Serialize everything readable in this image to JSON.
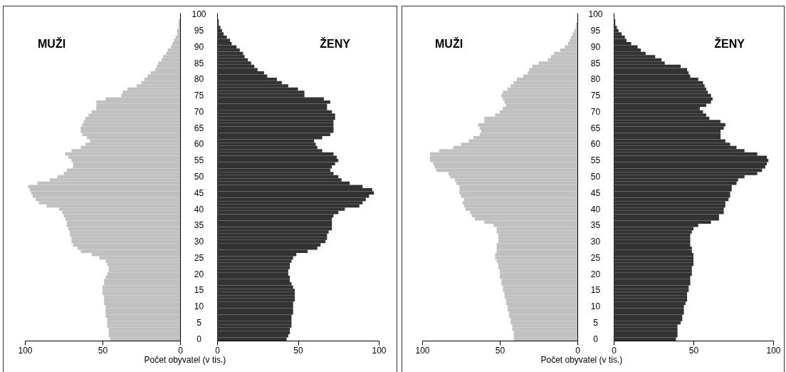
{
  "chart_data": [
    {
      "type": "bar",
      "orientation": "horizontal",
      "annotations": [
        "MUŽI"
      ],
      "tick_labels": "x",
      "color": "#c0c0c0",
      "xlim": [
        100,
        0
      ],
      "xticks": [
        100,
        50,
        0
      ],
      "categories": [
        "100",
        null,
        null,
        null,
        null,
        "95",
        null,
        null,
        null,
        null,
        "90",
        null,
        null,
        null,
        null,
        "85",
        null,
        null,
        null,
        null,
        "80",
        null,
        null,
        null,
        null,
        "75",
        null,
        null,
        null,
        null,
        "70",
        null,
        null,
        null,
        null,
        "65",
        null,
        null,
        null,
        null,
        "60",
        null,
        null,
        null,
        null,
        "55",
        null,
        null,
        null,
        null,
        "50",
        null,
        null,
        null,
        null,
        "45",
        null,
        null,
        null,
        null,
        "40",
        null,
        null,
        null,
        null,
        "35",
        null,
        null,
        null,
        null,
        "30",
        null,
        null,
        null,
        null,
        "25",
        null,
        null,
        null,
        null,
        "20",
        null,
        null,
        null,
        null,
        "15",
        null,
        null,
        null,
        null,
        "10",
        null,
        null,
        null,
        null,
        "5",
        null,
        null,
        null,
        null,
        "0"
      ],
      "values": [
        0,
        0,
        1,
        1,
        1,
        2,
        2,
        3,
        4,
        5,
        6,
        8,
        9,
        11,
        12,
        14,
        15,
        16,
        19,
        21,
        23,
        25,
        28,
        34,
        37,
        38,
        48,
        54,
        54,
        54,
        57,
        59,
        61,
        62,
        63,
        64,
        64,
        63,
        60,
        58,
        61,
        64,
        70,
        74,
        72,
        70,
        69,
        69,
        73,
        75,
        79,
        84,
        92,
        98,
        97,
        96,
        95,
        93,
        91,
        86,
        78,
        76,
        75,
        74,
        73,
        73,
        72,
        71,
        71,
        70,
        70,
        69,
        66,
        64,
        57,
        52,
        48,
        47,
        46,
        46,
        47,
        48,
        49,
        49,
        50,
        50,
        50,
        49,
        49,
        49,
        48,
        48,
        48,
        48,
        47,
        47,
        47,
        46,
        46,
        46,
        45
      ]
    },
    {
      "type": "bar",
      "orientation": "horizontal",
      "annotations": [
        "ŽENY"
      ],
      "xlabel": "Počet obyvatel (v tis.)",
      "color": "#333333",
      "xlim": [
        0,
        100
      ],
      "xticks": [
        0,
        50,
        100
      ],
      "categories": [
        "100",
        null,
        null,
        null,
        null,
        "95",
        null,
        null,
        null,
        null,
        "90",
        null,
        null,
        null,
        null,
        "85",
        null,
        null,
        null,
        null,
        "80",
        null,
        null,
        null,
        null,
        "75",
        null,
        null,
        null,
        null,
        "70",
        null,
        null,
        null,
        null,
        "65",
        null,
        null,
        null,
        null,
        "60",
        null,
        null,
        null,
        null,
        "55",
        null,
        null,
        null,
        null,
        "50",
        null,
        null,
        null,
        null,
        "45",
        null,
        null,
        null,
        null,
        "40",
        null,
        null,
        null,
        null,
        "35",
        null,
        null,
        null,
        null,
        "30",
        null,
        null,
        null,
        null,
        "25",
        null,
        null,
        null,
        null,
        "20",
        null,
        null,
        null,
        null,
        "15",
        null,
        null,
        null,
        null,
        "10",
        null,
        null,
        null,
        null,
        "5",
        null,
        null,
        null,
        null,
        "0"
      ],
      "values": [
        0,
        0,
        1,
        1,
        2,
        3,
        4,
        6,
        8,
        9,
        12,
        14,
        16,
        17,
        19,
        21,
        23,
        25,
        29,
        31,
        37,
        40,
        44,
        50,
        54,
        54,
        66,
        70,
        68,
        68,
        71,
        73,
        73,
        72,
        72,
        72,
        72,
        70,
        65,
        60,
        61,
        62,
        65,
        72,
        74,
        75,
        73,
        71,
        70,
        72,
        75,
        77,
        82,
        90,
        96,
        97,
        94,
        92,
        90,
        88,
        79,
        75,
        72,
        71,
        71,
        71,
        71,
        69,
        68,
        68,
        67,
        64,
        62,
        56,
        49,
        47,
        46,
        45,
        45,
        44,
        44,
        45,
        45,
        46,
        47,
        48,
        48,
        48,
        48,
        47,
        47,
        47,
        47,
        46,
        46,
        46,
        46,
        45,
        45,
        44,
        43
      ]
    },
    {
      "type": "bar",
      "orientation": "horizontal",
      "annotations": [
        "MUŽI"
      ],
      "tick_labels": "x",
      "color": "#c0c0c0",
      "xlim": [
        100,
        0
      ],
      "xticks": [
        100,
        50,
        0
      ],
      "categories": [
        "100",
        null,
        null,
        null,
        null,
        "95",
        null,
        null,
        null,
        null,
        "90",
        null,
        null,
        null,
        null,
        "85",
        null,
        null,
        null,
        null,
        "80",
        null,
        null,
        null,
        null,
        "75",
        null,
        null,
        null,
        null,
        "70",
        null,
        null,
        null,
        null,
        "65",
        null,
        null,
        null,
        null,
        "60",
        null,
        null,
        null,
        null,
        "55",
        null,
        null,
        null,
        null,
        "50",
        null,
        null,
        null,
        null,
        "45",
        null,
        null,
        null,
        null,
        "40",
        null,
        null,
        null,
        null,
        "35",
        null,
        null,
        null,
        null,
        "30",
        null,
        null,
        null,
        null,
        "25",
        null,
        null,
        null,
        null,
        "20",
        null,
        null,
        null,
        null,
        "15",
        null,
        null,
        null,
        null,
        "10",
        null,
        null,
        null,
        null,
        "5",
        null,
        null,
        null,
        null,
        "0"
      ],
      "values": [
        0,
        0,
        0,
        1,
        1,
        2,
        3,
        4,
        5,
        6,
        8,
        11,
        15,
        17,
        19,
        25,
        29,
        31,
        32,
        35,
        39,
        41,
        43,
        45,
        48,
        49,
        48,
        47,
        46,
        48,
        50,
        53,
        60,
        60,
        64,
        63,
        62,
        63,
        67,
        70,
        75,
        80,
        89,
        95,
        95,
        95,
        93,
        92,
        91,
        83,
        82,
        79,
        78,
        76,
        76,
        76,
        75,
        73,
        74,
        73,
        72,
        69,
        68,
        66,
        60,
        54,
        52,
        52,
        51,
        51,
        51,
        52,
        52,
        52,
        53,
        53,
        52,
        51,
        51,
        50,
        50,
        50,
        49,
        49,
        48,
        48,
        47,
        47,
        46,
        46,
        45,
        45,
        44,
        44,
        43,
        43,
        42,
        42,
        41,
        41,
        41
      ]
    },
    {
      "type": "bar",
      "orientation": "horizontal",
      "annotations": [
        "ŽENY"
      ],
      "xlabel": "Počet obyvatel (v tis.)",
      "color": "#333333",
      "xlim": [
        0,
        100
      ],
      "xticks": [
        0,
        50,
        100
      ],
      "categories": [
        "100",
        null,
        null,
        null,
        null,
        "95",
        null,
        null,
        null,
        null,
        "90",
        null,
        null,
        null,
        null,
        "85",
        null,
        null,
        null,
        null,
        "80",
        null,
        null,
        null,
        null,
        "75",
        null,
        null,
        null,
        null,
        "70",
        null,
        null,
        null,
        null,
        "65",
        null,
        null,
        null,
        null,
        "60",
        null,
        null,
        null,
        null,
        "55",
        null,
        null,
        null,
        null,
        "50",
        null,
        null,
        null,
        null,
        "45",
        null,
        null,
        null,
        null,
        "40",
        null,
        null,
        null,
        null,
        "35",
        null,
        null,
        null,
        null,
        "30",
        null,
        null,
        null,
        null,
        "25",
        null,
        null,
        null,
        null,
        "20",
        null,
        null,
        null,
        null,
        "15",
        null,
        null,
        null,
        null,
        "10",
        null,
        null,
        null,
        null,
        "5",
        null,
        null,
        null,
        null,
        "0"
      ],
      "values": [
        0,
        0,
        1,
        1,
        2,
        3,
        5,
        7,
        8,
        11,
        15,
        17,
        20,
        26,
        30,
        32,
        42,
        46,
        47,
        48,
        53,
        56,
        57,
        58,
        59,
        61,
        62,
        61,
        58,
        54,
        56,
        58,
        60,
        67,
        70,
        69,
        67,
        67,
        67,
        70,
        73,
        77,
        82,
        90,
        96,
        97,
        96,
        95,
        93,
        90,
        82,
        78,
        77,
        74,
        74,
        73,
        73,
        72,
        70,
        70,
        69,
        69,
        66,
        66,
        61,
        53,
        50,
        49,
        48,
        48,
        48,
        48,
        49,
        49,
        50,
        50,
        50,
        50,
        49,
        49,
        49,
        48,
        48,
        48,
        47,
        47,
        46,
        46,
        46,
        45,
        44,
        44,
        44,
        43,
        43,
        42,
        40,
        40,
        40,
        40,
        39
      ]
    }
  ]
}
